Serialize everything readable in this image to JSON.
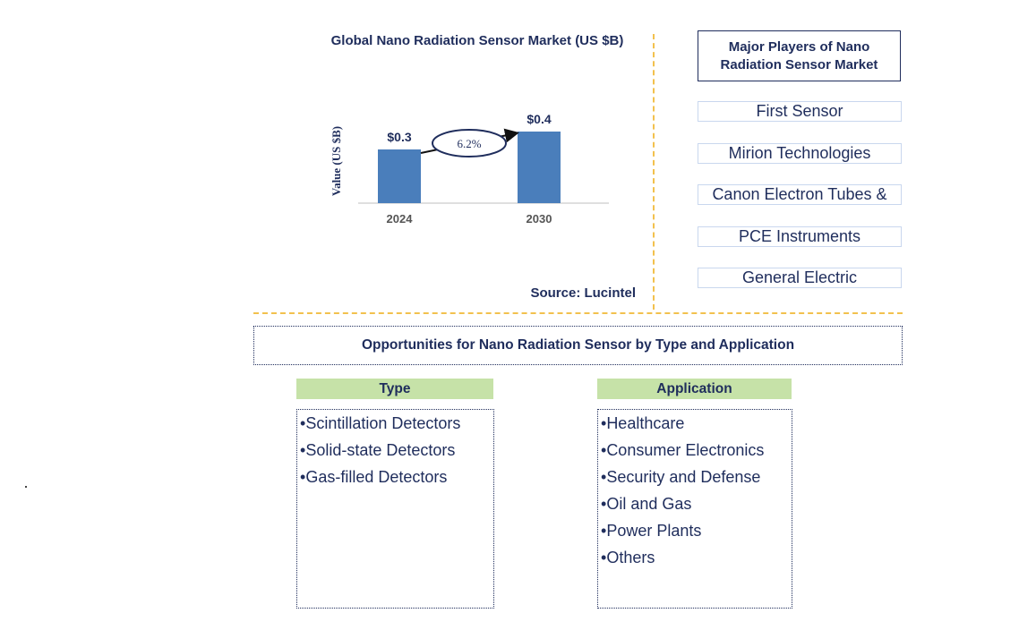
{
  "chart_data": {
    "type": "bar",
    "title": "Global Nano Radiation Sensor Market (US $B)",
    "ylabel": "Value (US $B)",
    "categories": [
      "2024",
      "2030"
    ],
    "values": [
      0.3,
      0.4
    ],
    "value_labels": [
      "$0.3",
      "$0.4"
    ],
    "growth_label": "6.2%",
    "bar_color": "#4a7ebb",
    "source": "Source: Lucintel"
  },
  "players": {
    "header": "Major Players of Nano Radiation Sensor Market",
    "items": [
      "First Sensor",
      "Mirion Technologies",
      "Canon Electron Tubes &",
      "PCE Instruments",
      "General Electric"
    ]
  },
  "opportunities": {
    "title": "Opportunities for Nano Radiation Sensor by Type and Application",
    "type": {
      "header": "Type",
      "items": [
        "Scintillation Detectors",
        "Solid-state Detectors",
        "Gas-filled Detectors"
      ]
    },
    "application": {
      "header": "Application",
      "items": [
        "Healthcare",
        "Consumer Electronics",
        "Security and Defense",
        "Oil and Gas",
        "Power Plants",
        "Others"
      ]
    }
  },
  "colors": {
    "text_navy": "#1f2d5c",
    "divider": "#f2c14e",
    "header_green": "#c6e2a8"
  }
}
